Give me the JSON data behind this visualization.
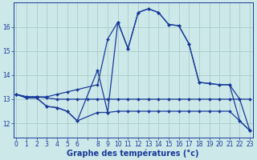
{
  "bg_color": "#cce8e8",
  "grid_color": "#aacccc",
  "line_color": "#1a3a9a",
  "marker_color": "#1a3a9a",
  "xlabel": "Graphe des températures (°c)",
  "xtick_labels": [
    "0",
    "1",
    "2",
    "3",
    "4",
    "5",
    "6",
    "",
    "8",
    "9",
    "10",
    "11",
    "12",
    "13",
    "14",
    "15",
    "16",
    "17",
    "18",
    "19",
    "20",
    "21",
    "22",
    "23"
  ],
  "xticks": [
    0,
    1,
    2,
    3,
    4,
    5,
    6,
    7,
    8,
    9,
    10,
    11,
    12,
    13,
    14,
    15,
    16,
    17,
    18,
    19,
    20,
    21,
    22,
    23
  ],
  "yticks": [
    12,
    13,
    14,
    15,
    16
  ],
  "ylim": [
    11.4,
    17.0
  ],
  "xlim": [
    -0.3,
    23.3
  ],
  "series": [
    {
      "x": [
        0,
        1,
        2,
        3,
        4,
        5,
        6,
        7,
        8,
        9,
        10,
        11,
        12,
        13,
        14,
        15,
        16,
        17,
        18,
        19,
        20,
        21,
        22,
        23
      ],
      "y": [
        13.2,
        13.1,
        13.1,
        13.05,
        13.0,
        13.0,
        13.0,
        13.0,
        13.0,
        13.0,
        13.0,
        13.0,
        13.0,
        13.0,
        13.0,
        13.0,
        13.0,
        13.0,
        13.0,
        13.0,
        13.0,
        13.0,
        13.0,
        13.0
      ]
    },
    {
      "x": [
        0,
        1,
        2,
        3,
        4,
        5,
        6,
        8,
        9,
        10,
        11,
        12,
        13,
        14,
        15,
        16,
        17,
        18,
        19,
        20,
        21,
        22,
        23
      ],
      "y": [
        13.2,
        13.05,
        13.05,
        12.7,
        12.65,
        12.5,
        12.1,
        12.45,
        12.45,
        12.5,
        12.5,
        12.5,
        12.5,
        12.5,
        12.5,
        12.5,
        12.5,
        12.5,
        12.5,
        12.5,
        12.5,
        12.1,
        11.7
      ]
    },
    {
      "x": [
        0,
        1,
        2,
        3,
        4,
        5,
        6,
        8,
        9,
        10,
        11,
        12,
        13,
        14,
        15,
        16,
        17,
        18,
        19,
        20,
        21,
        22,
        23
      ],
      "y": [
        13.2,
        13.1,
        13.1,
        13.1,
        13.2,
        13.3,
        13.4,
        13.6,
        15.5,
        16.2,
        15.1,
        16.6,
        16.75,
        16.6,
        16.1,
        16.05,
        15.3,
        13.7,
        13.65,
        13.6,
        13.6,
        13.0,
        11.7
      ]
    },
    {
      "x": [
        0,
        1,
        2,
        3,
        4,
        5,
        6,
        8,
        9,
        10,
        11,
        12,
        13,
        14,
        15,
        16,
        17,
        18,
        19,
        20,
        21,
        22,
        23
      ],
      "y": [
        13.2,
        13.05,
        13.05,
        12.7,
        12.65,
        12.5,
        12.1,
        14.2,
        12.45,
        16.2,
        15.1,
        16.6,
        16.75,
        16.6,
        16.1,
        16.05,
        15.3,
        13.7,
        13.65,
        13.6,
        13.6,
        12.1,
        11.7
      ]
    }
  ]
}
